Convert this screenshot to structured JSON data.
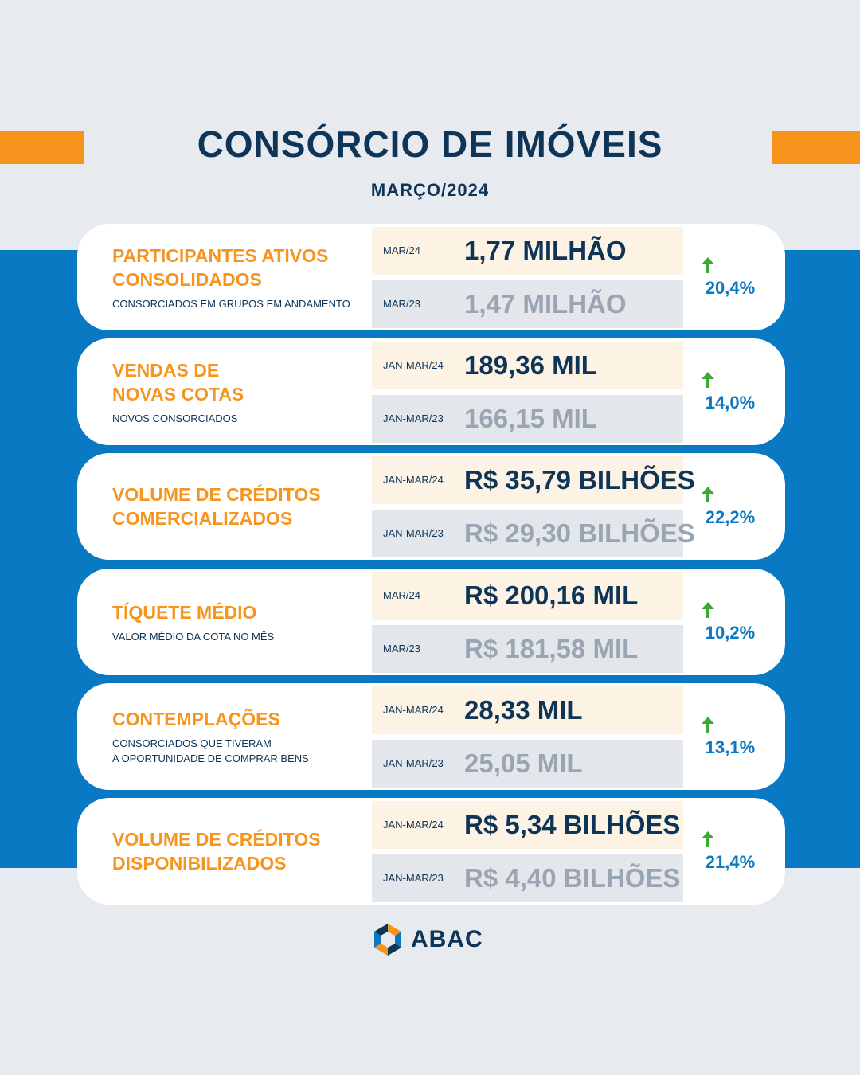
{
  "header": {
    "title": "CONSÓRCIO DE IMÓVEIS",
    "subtitle": "MARÇO/2024"
  },
  "colors": {
    "navy": "#0e3458",
    "orange": "#f7941d",
    "blue": "#0a79c4",
    "green_arrow": "#3aaa35"
  },
  "cards": [
    {
      "title": "PARTICIPANTES ATIVOS\nCONSOLIDADOS",
      "desc": "CONSORCIADOS EM GRUPOS EM ANDAMENTO",
      "cur_period": "MAR/24",
      "cur_value": "1,77 MILHÃO",
      "prev_period": "MAR/23",
      "prev_value": "1,47 MILHÃO",
      "change": "20,4%",
      "arrow_icon": "arrow-up-icon"
    },
    {
      "title": "VENDAS DE\nNOVAS COTAS",
      "desc": "NOVOS CONSORCIADOS",
      "cur_period": "JAN-MAR/24",
      "cur_value": "189,36 MIL",
      "prev_period": "JAN-MAR/23",
      "prev_value": "166,15 MIL",
      "change": "14,0%",
      "arrow_icon": "arrow-up-icon"
    },
    {
      "title": "VOLUME DE CRÉDITOS\nCOMERCIALIZADOS",
      "desc": "",
      "cur_period": "JAN-MAR/24",
      "cur_value": "R$ 35,79 BILHÕES",
      "prev_period": "JAN-MAR/23",
      "prev_value": "R$ 29,30 BILHÕES",
      "change": "22,2%",
      "arrow_icon": "arrow-up-icon"
    },
    {
      "title": "TÍQUETE MÉDIO",
      "desc": "VALOR MÉDIO DA COTA NO MÊS",
      "cur_period": "MAR/24",
      "cur_value": "R$ 200,16 MIL",
      "prev_period": "MAR/23",
      "prev_value": "R$ 181,58 MIL",
      "change": "10,2%",
      "arrow_icon": "arrow-up-icon"
    },
    {
      "title": "CONTEMPLAÇÕES",
      "desc": "CONSORCIADOS QUE TIVERAM\nA OPORTUNIDADE DE COMPRAR BENS",
      "cur_period": "JAN-MAR/24",
      "cur_value": "28,33 MIL",
      "prev_period": "JAN-MAR/23",
      "prev_value": "25,05 MIL",
      "change": "13,1%",
      "arrow_icon": "arrow-up-icon"
    },
    {
      "title": "VOLUME DE CRÉDITOS\nDISPONIBILIZADOS",
      "desc": "",
      "cur_period": "JAN-MAR/24",
      "cur_value": "R$ 5,34 BILHÕES",
      "prev_period": "JAN-MAR/23",
      "prev_value": "R$ 4,40 BILHÕES",
      "change": "21,4%",
      "arrow_icon": "arrow-up-icon"
    }
  ],
  "footer": {
    "logo_text": "ABAC",
    "logo_icon": "abac-logo-icon"
  }
}
